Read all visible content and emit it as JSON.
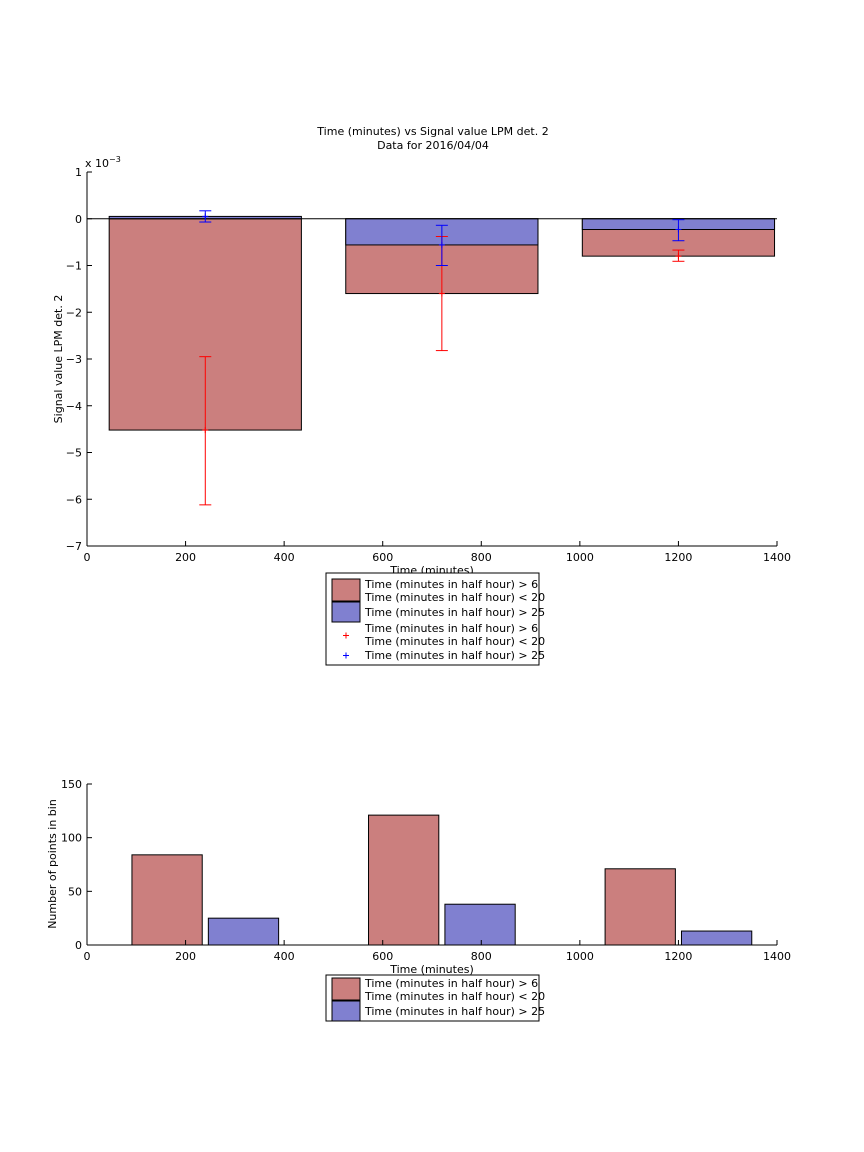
{
  "colors": {
    "group1": "#cb7f7e",
    "group2": "#8080d0",
    "err1": "#ff0000",
    "err2": "#0000ff"
  },
  "chart_data": [
    {
      "type": "bar",
      "title": "Time (minutes) vs Signal value LPM det. 2",
      "subtitle": "Data for 2016/04/04",
      "xlabel": "Time (minutes)",
      "ylabel": "Signal value LPM det. 2",
      "y_exponent_label": "x 10",
      "y_exponent": "−3",
      "xlim": [
        0,
        1400
      ],
      "ylim": [
        -7,
        1
      ],
      "xticks": [
        0,
        200,
        400,
        600,
        800,
        1000,
        1200,
        1400
      ],
      "yticks": [
        1,
        0,
        -1,
        -2,
        -3,
        -4,
        -5,
        -6,
        -7
      ],
      "ytick_labels": [
        "1",
        "0",
        "−1",
        "−2",
        "−3",
        "−4",
        "−5",
        "−6",
        "−7"
      ],
      "bar_range": [
        [
          45,
          435
        ],
        [
          525,
          915
        ],
        [
          1005,
          1395
        ]
      ],
      "series": [
        {
          "name": "Time (minutes in half hour) > 6\nTime (minutes in half hour) < 20",
          "x": [
            240,
            720,
            1200
          ],
          "values": [
            -4.52,
            -1.6,
            -0.8
          ],
          "err_low": [
            -6.12,
            -2.82,
            -0.91
          ],
          "err_high": [
            -2.95,
            -0.38,
            -0.67
          ]
        },
        {
          "name": "Time (minutes in half hour) > 25",
          "x": [
            240,
            720,
            1200
          ],
          "values": [
            0.05,
            -0.56,
            -0.23
          ],
          "err_low": [
            -0.07,
            -1.0,
            -0.47
          ],
          "err_high": [
            0.17,
            -0.14,
            -0.02
          ]
        }
      ],
      "legend": [
        {
          "label": "Time (minutes in half hour) > 6\nTime (minutes in half hour) < 20",
          "kind": "patch",
          "color": "group1"
        },
        {
          "label": "Time (minutes in half hour) > 25",
          "kind": "patch",
          "color": "group2"
        },
        {
          "label": "Time (minutes in half hour) > 6\nTime (minutes in half hour) < 20",
          "kind": "marker",
          "color": "err1"
        },
        {
          "label": "Time (minutes in half hour) > 25",
          "kind": "marker",
          "color": "err2"
        }
      ]
    },
    {
      "type": "bar",
      "xlabel": "Time (minutes)",
      "ylabel": "Number of points in bin",
      "xlim": [
        0,
        1400
      ],
      "ylim": [
        0,
        150
      ],
      "xticks": [
        0,
        200,
        400,
        600,
        800,
        1000,
        1200,
        1400
      ],
      "yticks": [
        0,
        50,
        100,
        150
      ],
      "bar_range": [
        [
          85,
          395
        ],
        [
          565,
          875
        ],
        [
          1045,
          1355
        ]
      ],
      "series": [
        {
          "name": "Time (minutes in half hour) > 6\nTime (minutes in half hour) < 20",
          "values": [
            84,
            121,
            71
          ]
        },
        {
          "name": "Time (minutes in half hour) > 25",
          "values": [
            25,
            38,
            13
          ]
        }
      ],
      "legend": [
        {
          "label": "Time (minutes in half hour) > 6\nTime (minutes in half hour) < 20",
          "kind": "patch",
          "color": "group1"
        },
        {
          "label": "Time (minutes in half hour) > 25",
          "kind": "patch",
          "color": "group2"
        }
      ]
    }
  ]
}
